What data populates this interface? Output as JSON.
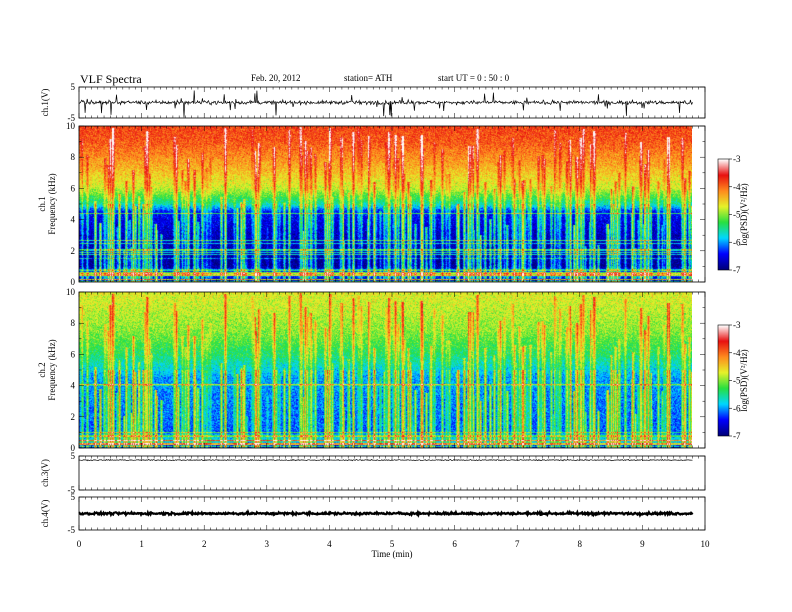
{
  "header": {
    "title": "VLF  Spectra",
    "date": "Feb. 20, 2012",
    "station": "station= ATH",
    "start": "start  UT  =    0  : 50 : 0"
  },
  "colors": {
    "colormap": [
      "#00007a",
      "#0000ff",
      "#00d8ff",
      "#28e040",
      "#e6f22a",
      "#ff8a1e",
      "#e81010",
      "#ffffff"
    ]
  },
  "chart_data": [
    {
      "type": "line",
      "panel": "ch1-waveform",
      "ylabel": "ch.1(V)",
      "ylim": [
        -5,
        5
      ],
      "yticks": [
        "5",
        "-5"
      ],
      "xlim": [
        0,
        10
      ],
      "x_end": 9.8,
      "baseline": 0,
      "description_values": {
        "noise_amplitude": 0.6,
        "spike_amplitude": 4.5
      }
    },
    {
      "type": "heatmap",
      "panel": "ch1-spectrogram",
      "ylabel": "ch.1\nFrequency  (kHz)",
      "ylim": [
        0,
        10
      ],
      "yticks": [
        "0",
        "2",
        "4",
        "6",
        "8",
        "10"
      ],
      "xlim": [
        0,
        10
      ],
      "x_end": 9.8,
      "colorbar": {
        "label": "log(PSD)(V²/Hz)",
        "range": [
          -7,
          -3
        ],
        "ticks": [
          "-3",
          "-4",
          "-5",
          "-6",
          "-7"
        ]
      },
      "profile_kHz": [
        [
          0,
          -7.0
        ],
        [
          0.4,
          -6.2
        ],
        [
          1.0,
          -6.9
        ],
        [
          3.0,
          -6.7
        ],
        [
          4.5,
          -6.4
        ],
        [
          5.0,
          -5.6
        ],
        [
          6.0,
          -4.8
        ],
        [
          7.5,
          -4.3
        ],
        [
          9.0,
          -3.9
        ],
        [
          10.0,
          -3.8
        ]
      ]
    },
    {
      "type": "heatmap",
      "panel": "ch2-spectrogram",
      "ylabel": "ch.2\nFrequency  (kHz)",
      "ylim": [
        0,
        10
      ],
      "yticks": [
        "0",
        "2",
        "4",
        "6",
        "8",
        "10"
      ],
      "xlim": [
        0,
        10
      ],
      "x_end": 9.8,
      "colorbar": {
        "label": "log(PSD)(V²/Hz)",
        "range": [
          -7,
          -3
        ],
        "ticks": [
          "-3",
          "-4",
          "-5",
          "-6",
          "-7"
        ]
      },
      "profile_kHz": [
        [
          0,
          -6.6
        ],
        [
          0.4,
          -5.7
        ],
        [
          1.0,
          -6.2
        ],
        [
          3.0,
          -6.1
        ],
        [
          4.5,
          -6.0
        ],
        [
          5.0,
          -5.8
        ],
        [
          6.0,
          -5.4
        ],
        [
          7.5,
          -5.0
        ],
        [
          9.0,
          -4.8
        ],
        [
          10.0,
          -4.7
        ]
      ]
    },
    {
      "type": "line",
      "panel": "ch3-waveform",
      "ylabel": "ch.3(V)",
      "ylim": [
        -5,
        5
      ],
      "yticks": [
        "5",
        "-5"
      ],
      "xlim": [
        0,
        10
      ],
      "x_end": 9.8,
      "baseline": 3.8,
      "description_values": {
        "noise_amplitude": 0.15
      }
    },
    {
      "type": "line",
      "panel": "ch4-waveform",
      "ylabel": "ch.4(V)",
      "ylim": [
        -5,
        5
      ],
      "yticks": [
        "5",
        "-5"
      ],
      "xlim": [
        0,
        10
      ],
      "x_end": 9.8,
      "baseline": 0,
      "description_values": {
        "noise_amplitude": 0.35
      }
    }
  ],
  "xaxis": {
    "label": "Time  (min)",
    "ticks": [
      "0",
      "1",
      "2",
      "3",
      "4",
      "5",
      "6",
      "7",
      "8",
      "9",
      "10"
    ]
  }
}
